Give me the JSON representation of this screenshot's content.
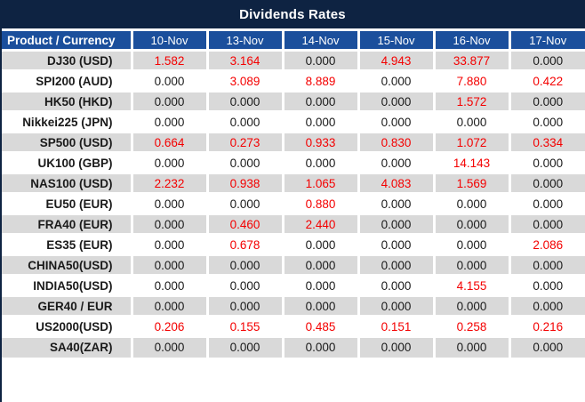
{
  "title": "Dividends Rates",
  "chart_data": {
    "type": "table",
    "title": "Dividends Rates",
    "row_header_label": "Product / Currency",
    "column_headers": [
      "10-Nov",
      "13-Nov",
      "14-Nov",
      "15-Nov",
      "16-Nov",
      "17-Nov"
    ],
    "rows": [
      {
        "product": "DJ30 (USD)",
        "values": [
          "1.582",
          "3.164",
          "0.000",
          "4.943",
          "33.877",
          "0.000"
        ]
      },
      {
        "product": "SPI200 (AUD)",
        "values": [
          "0.000",
          "3.089",
          "8.889",
          "0.000",
          "7.880",
          "0.422"
        ]
      },
      {
        "product": "HK50 (HKD)",
        "values": [
          "0.000",
          "0.000",
          "0.000",
          "0.000",
          "1.572",
          "0.000"
        ]
      },
      {
        "product": "Nikkei225 (JPN)",
        "values": [
          "0.000",
          "0.000",
          "0.000",
          "0.000",
          "0.000",
          "0.000"
        ]
      },
      {
        "product": "SP500 (USD)",
        "values": [
          "0.664",
          "0.273",
          "0.933",
          "0.830",
          "1.072",
          "0.334"
        ]
      },
      {
        "product": "UK100 (GBP)",
        "values": [
          "0.000",
          "0.000",
          "0.000",
          "0.000",
          "14.143",
          "0.000"
        ]
      },
      {
        "product": "NAS100 (USD)",
        "values": [
          "2.232",
          "0.938",
          "1.065",
          "4.083",
          "1.569",
          "0.000"
        ]
      },
      {
        "product": "EU50 (EUR)",
        "values": [
          "0.000",
          "0.000",
          "0.880",
          "0.000",
          "0.000",
          "0.000"
        ]
      },
      {
        "product": "FRA40 (EUR)",
        "values": [
          "0.000",
          "0.460",
          "2.440",
          "0.000",
          "0.000",
          "0.000"
        ]
      },
      {
        "product": "ES35 (EUR)",
        "values": [
          "0.000",
          "0.678",
          "0.000",
          "0.000",
          "0.000",
          "2.086"
        ]
      },
      {
        "product": "CHINA50(USD)",
        "values": [
          "0.000",
          "0.000",
          "0.000",
          "0.000",
          "0.000",
          "0.000"
        ]
      },
      {
        "product": "INDIA50(USD)",
        "values": [
          "0.000",
          "0.000",
          "0.000",
          "0.000",
          "4.155",
          "0.000"
        ]
      },
      {
        "product": "GER40 / EUR",
        "values": [
          "0.000",
          "0.000",
          "0.000",
          "0.000",
          "0.000",
          "0.000"
        ]
      },
      {
        "product": "US2000(USD)",
        "values": [
          "0.206",
          "0.155",
          "0.485",
          "0.151",
          "0.258",
          "0.216"
        ]
      },
      {
        "product": "SA40(ZAR)",
        "values": [
          "0.000",
          "0.000",
          "0.000",
          "0.000",
          "0.000",
          "0.000"
        ]
      }
    ],
    "value_format": "3 decimals",
    "highlight_rule": "non-zero values rendered in red",
    "layout": {
      "striped_rows": true,
      "stripe_colors": [
        "gray",
        "white"
      ]
    }
  },
  "colors": {
    "title_bg": "#0e2342",
    "header_bg": "#1b4f9c",
    "row_gray": "#d9d9d9",
    "row_white": "#ffffff",
    "value_red": "#f40000",
    "value_black": "#1a1a1a"
  }
}
